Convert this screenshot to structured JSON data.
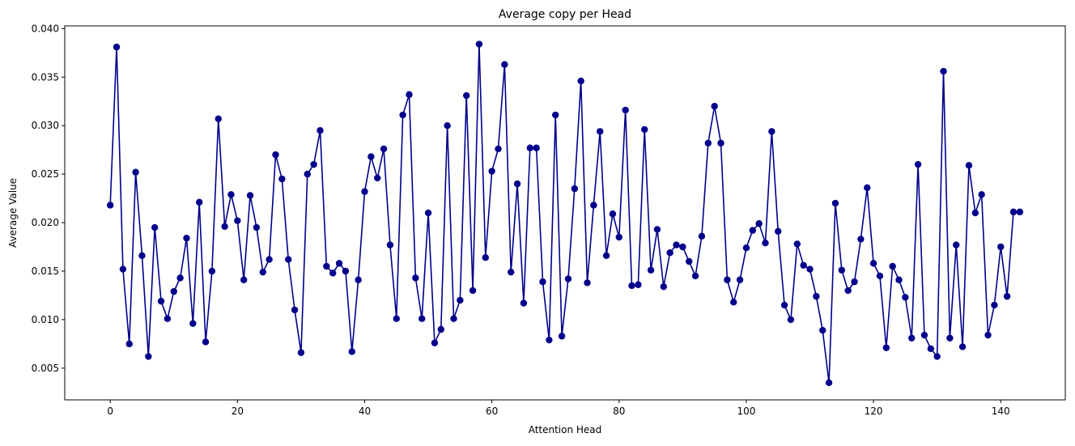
{
  "chart_data": {
    "type": "line",
    "title": "Average copy per Head",
    "xlabel": "Attention Head",
    "ylabel": "Average Value",
    "xlim": [
      -7.15,
      150.15
    ],
    "ylim": [
      0.00173,
      0.04028
    ],
    "xticks": [
      0,
      20,
      40,
      60,
      80,
      100,
      120,
      140
    ],
    "xtick_labels": [
      "0",
      "20",
      "40",
      "60",
      "80",
      "100",
      "120",
      "140"
    ],
    "yticks": [
      0.005,
      0.01,
      0.015,
      0.02,
      0.025,
      0.03,
      0.035,
      0.04
    ],
    "ytick_labels": [
      "0.005",
      "0.010",
      "0.015",
      "0.020",
      "0.025",
      "0.030",
      "0.035",
      "0.040"
    ],
    "grid": false,
    "legend": "none",
    "markers": true,
    "color": "#00008b",
    "series": [
      {
        "name": "",
        "x": [
          0,
          1,
          2,
          3,
          4,
          5,
          6,
          7,
          8,
          9,
          10,
          11,
          12,
          13,
          14,
          15,
          16,
          17,
          18,
          19,
          20,
          21,
          22,
          23,
          24,
          25,
          26,
          27,
          28,
          29,
          30,
          31,
          32,
          33,
          34,
          35,
          36,
          37,
          38,
          39,
          40,
          41,
          42,
          43,
          44,
          45,
          46,
          47,
          48,
          49,
          50,
          51,
          52,
          53,
          54,
          55,
          56,
          57,
          58,
          59,
          60,
          61,
          62,
          63,
          64,
          65,
          66,
          67,
          68,
          69,
          70,
          71,
          72,
          73,
          74,
          75,
          76,
          77,
          78,
          79,
          80,
          81,
          82,
          83,
          84,
          85,
          86,
          87,
          88,
          89,
          90,
          91,
          92,
          93,
          94,
          95,
          96,
          97,
          98,
          99,
          100,
          101,
          102,
          103,
          104,
          105,
          106,
          107,
          108,
          109,
          110,
          111,
          112,
          113,
          114,
          115,
          116,
          117,
          118,
          119,
          120,
          121,
          122,
          123,
          124,
          125,
          126,
          127,
          128,
          129,
          130,
          131,
          132,
          133,
          134,
          135,
          136,
          137,
          138,
          139,
          140,
          141,
          142,
          143
        ],
        "values": [
          0.0218,
          0.0381,
          0.0152,
          0.0075,
          0.0252,
          0.0166,
          0.0062,
          0.0195,
          0.0119,
          0.0101,
          0.0129,
          0.0143,
          0.0184,
          0.0096,
          0.0221,
          0.0077,
          0.015,
          0.0307,
          0.0196,
          0.0229,
          0.0202,
          0.0141,
          0.0228,
          0.0195,
          0.0149,
          0.0162,
          0.027,
          0.0245,
          0.0162,
          0.011,
          0.0066,
          0.025,
          0.026,
          0.0295,
          0.0155,
          0.0148,
          0.0158,
          0.015,
          0.0067,
          0.0141,
          0.0232,
          0.0268,
          0.0246,
          0.0276,
          0.0177,
          0.0101,
          0.0311,
          0.0332,
          0.0143,
          0.0101,
          0.021,
          0.0076,
          0.009,
          0.03,
          0.0101,
          0.012,
          0.0331,
          0.013,
          0.0384,
          0.0164,
          0.0253,
          0.0276,
          0.0363,
          0.0149,
          0.024,
          0.0117,
          0.0277,
          0.0277,
          0.0139,
          0.0079,
          0.0311,
          0.0083,
          0.0142,
          0.0235,
          0.0346,
          0.0138,
          0.0218,
          0.0294,
          0.0166,
          0.0209,
          0.0185,
          0.0316,
          0.0135,
          0.0136,
          0.0296,
          0.0151,
          0.0193,
          0.0134,
          0.0169,
          0.0177,
          0.0175,
          0.016,
          0.0145,
          0.0186,
          0.0282,
          0.032,
          0.0282,
          0.0141,
          0.0118,
          0.0141,
          0.0174,
          0.0192,
          0.0199,
          0.0179,
          0.0294,
          0.0191,
          0.0115,
          0.01,
          0.0178,
          0.0156,
          0.0152,
          0.0124,
          0.0089,
          0.0035,
          0.022,
          0.0151,
          0.013,
          0.0139,
          0.0183,
          0.0236,
          0.0158,
          0.0145,
          0.0071,
          0.0155,
          0.0141,
          0.0123,
          0.0081,
          0.026,
          0.0084,
          0.007,
          0.0062,
          0.0356,
          0.0081,
          0.0177,
          0.0072,
          0.0259,
          0.021,
          0.0229,
          0.0084,
          0.0115,
          0.0175,
          0.0124,
          0.0211,
          0.0211
        ]
      }
    ]
  }
}
